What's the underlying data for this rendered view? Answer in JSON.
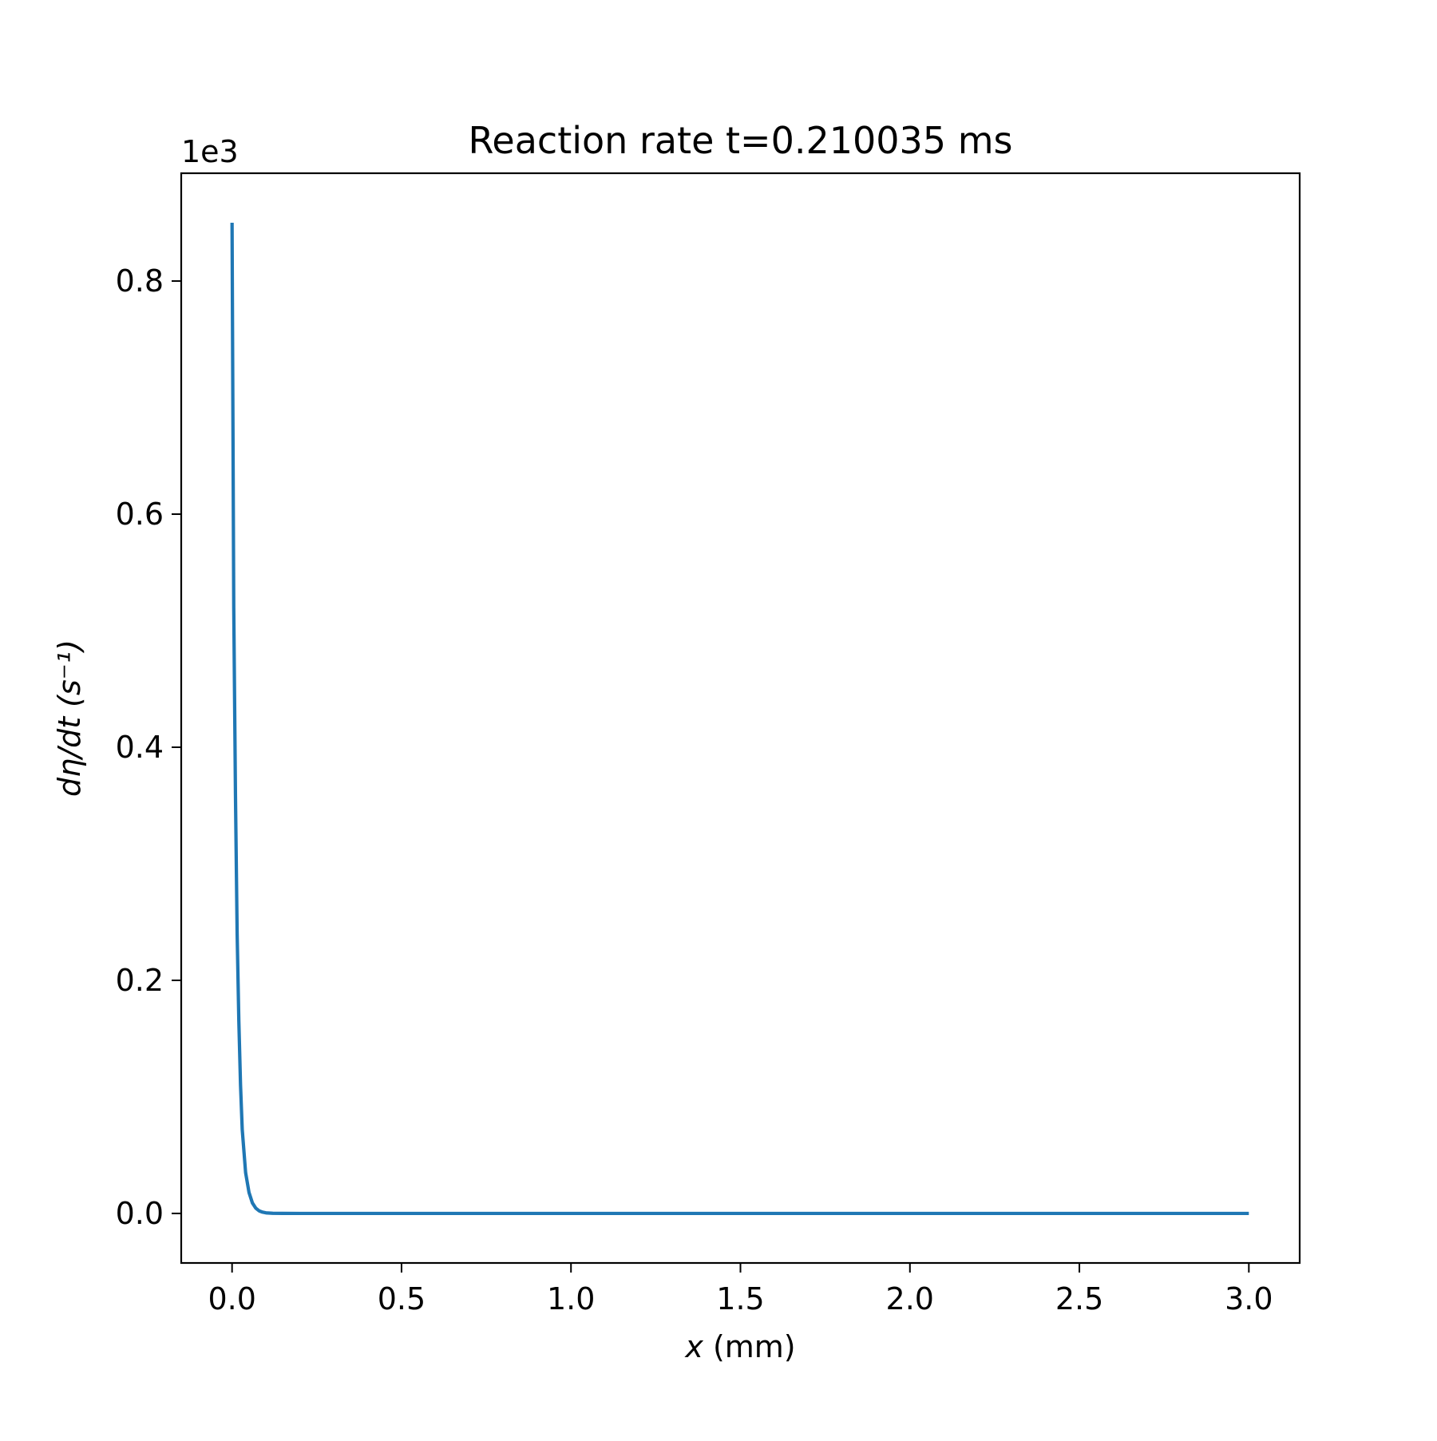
{
  "chart_data": {
    "type": "line",
    "title": "Reaction rate t=0.210035 ms",
    "xlabel_var": "x",
    "xlabel_unit": " (mm)",
    "ylabel": "dη/dt (s⁻¹)",
    "y_offset_label": "1e3",
    "xlim": [
      -0.15,
      3.15
    ],
    "ylim": [
      -0.0425,
      0.8925
    ],
    "y_scale": 1000,
    "x_ticks": [
      0.0,
      0.5,
      1.0,
      1.5,
      2.0,
      2.5,
      3.0
    ],
    "x_tick_labels": [
      "0.0",
      "0.5",
      "1.0",
      "1.5",
      "2.0",
      "2.5",
      "3.0"
    ],
    "y_ticks": [
      0.0,
      0.2,
      0.4,
      0.6,
      0.8
    ],
    "y_tick_labels": [
      "0.0",
      "0.2",
      "0.4",
      "0.6",
      "0.8"
    ],
    "grid": false,
    "legend": "none",
    "series": [
      {
        "color": "#1f77b4",
        "x": [
          0.0,
          0.005,
          0.01,
          0.015,
          0.02,
          0.025,
          0.03,
          0.04,
          0.05,
          0.06,
          0.07,
          0.08,
          0.09,
          0.1,
          0.12,
          0.15,
          0.2,
          0.3,
          0.5,
          1.0,
          1.5,
          2.0,
          2.5,
          3.0
        ],
        "y": [
          0.85,
          0.52,
          0.36,
          0.24,
          0.165,
          0.11,
          0.072,
          0.035,
          0.018,
          0.009,
          0.0045,
          0.0022,
          0.0011,
          0.0005,
          0.00015,
          3e-05,
          0.0,
          0.0,
          0.0,
          0.0,
          0.0,
          0.0,
          0.0,
          0.0
        ]
      }
    ]
  }
}
